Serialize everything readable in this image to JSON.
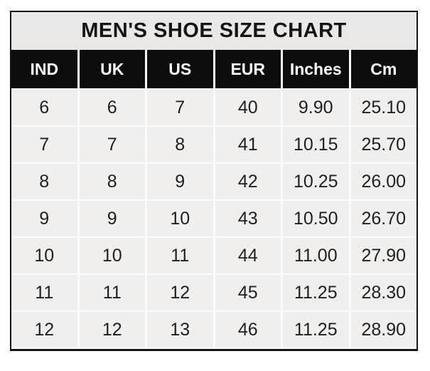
{
  "title": "MEN'S SHOE SIZE CHART",
  "chart_data": {
    "type": "table",
    "title": "MEN'S SHOE SIZE CHART",
    "columns": [
      "IND",
      "UK",
      "US",
      "EUR",
      "Inches",
      "Cm"
    ],
    "rows": [
      [
        "6",
        "6",
        "7",
        "40",
        "9.90",
        "25.10"
      ],
      [
        "7",
        "7",
        "8",
        "41",
        "10.15",
        "25.70"
      ],
      [
        "8",
        "8",
        "9",
        "42",
        "10.25",
        "26.00"
      ],
      [
        "9",
        "9",
        "10",
        "43",
        "10.50",
        "26.70"
      ],
      [
        "10",
        "10",
        "11",
        "44",
        "11.00",
        "27.90"
      ],
      [
        "11",
        "11",
        "12",
        "45",
        "11.25",
        "28.30"
      ],
      [
        "12",
        "12",
        "13",
        "46",
        "11.25",
        "28.90"
      ]
    ],
    "layout": {
      "grid": "white gridlines between cells",
      "legend": "none",
      "header_style": "black background, white bold text"
    }
  },
  "colors": {
    "page_bg": "#ffffff",
    "title_bg": "#e9e8e6",
    "header_bg": "#0c0c0c",
    "header_text": "#fdfdfd",
    "cell_bg": "#f0efed",
    "gridline": "#fbfbfb",
    "border": "#141414",
    "text": "#1f1f1f"
  }
}
